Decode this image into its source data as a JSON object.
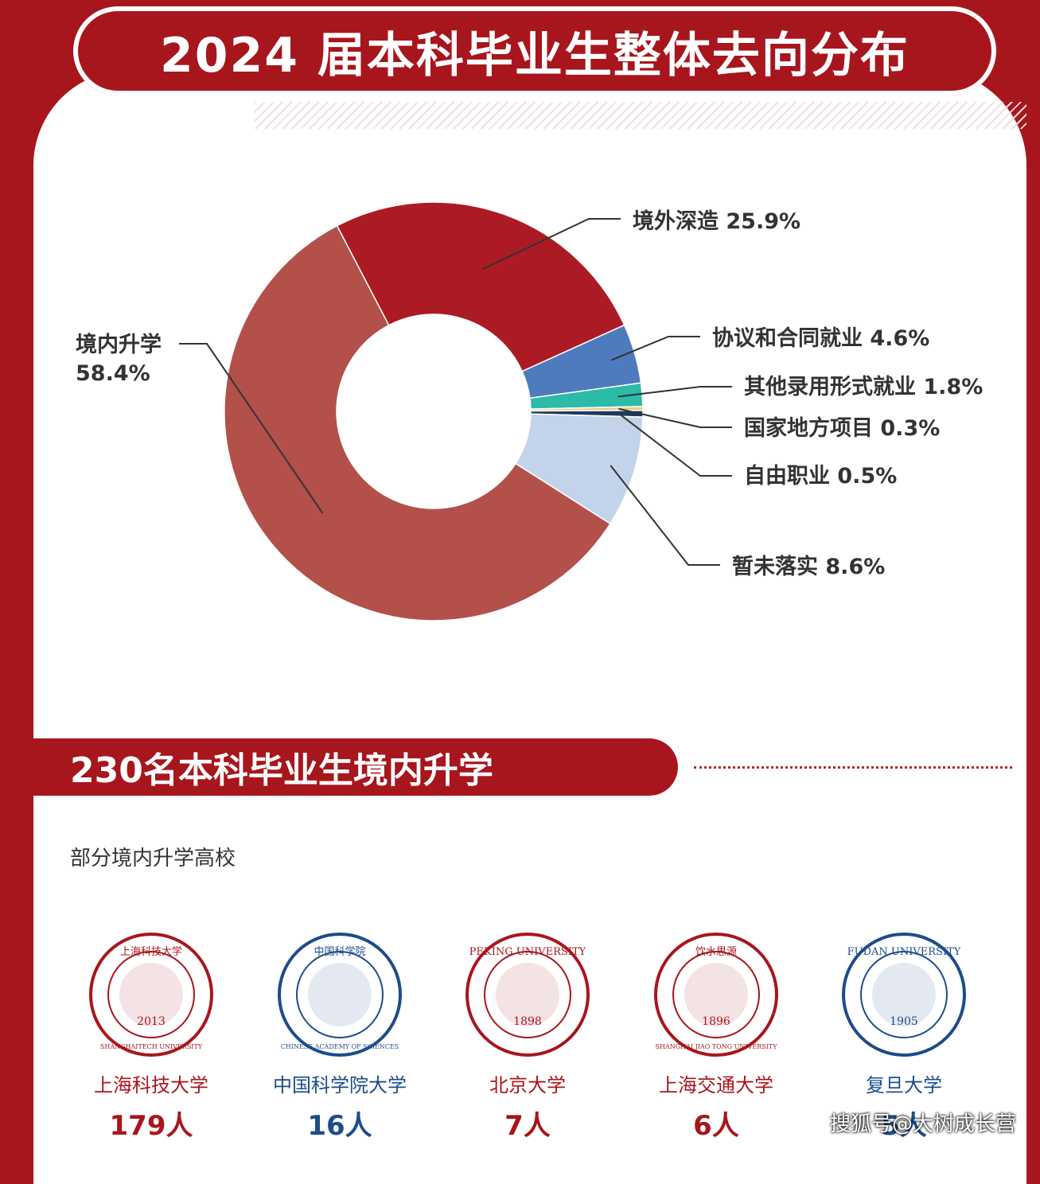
{
  "header": {
    "title": "2024 届本科毕业生整体去向分布"
  },
  "chart_data": {
    "type": "pie",
    "title": "2024 届本科毕业生整体去向分布",
    "slices": [
      {
        "label": "境外深造",
        "value": 25.9,
        "display": "境外深造 25.9%",
        "color": "#ac1b24"
      },
      {
        "label": "协议和合同就业",
        "value": 4.6,
        "display": "协议和合同就业 4.6%",
        "color": "#4e7bbd"
      },
      {
        "label": "其他录用形式就业",
        "value": 1.8,
        "display": "其他录用形式就业 1.8%",
        "color": "#2bbba8"
      },
      {
        "label": "国家地方项目",
        "value": 0.3,
        "display": "国家地方项目 0.3%",
        "color": "#ecc98b"
      },
      {
        "label": "自由职业",
        "value": 0.5,
        "display": "自由职业 0.5%",
        "color": "#1f3a5c"
      },
      {
        "label": "暂未落实",
        "value": 8.6,
        "display": "暂未落实 8.6%",
        "color": "#c3d4ea"
      },
      {
        "label": "境内升学",
        "value": 58.4,
        "display_line1": "境内升学",
        "display_line2": "58.4%",
        "color": "#b3504a"
      }
    ]
  },
  "section2": {
    "title": "230名本科毕业生境内升学",
    "subtitle": "部分境内升学高校"
  },
  "universities": [
    {
      "name": "上海科技大学",
      "count": "179人",
      "logo_text": "上海科技大学",
      "logo_en": "SHANGHAITECH UNIVERSITY",
      "logo_year": "2013",
      "color": "#a8161d"
    },
    {
      "name": "中国科学院大学",
      "count": "16人",
      "logo_text": "中国科学院",
      "logo_en": "CHINESE ACADEMY OF SCIENCES",
      "color": "#1d4c8a"
    },
    {
      "name": "北京大学",
      "count": "7人",
      "logo_text": "PEKING UNIVERSITY",
      "logo_year": "1898",
      "color": "#a8161d"
    },
    {
      "name": "上海交通大学",
      "count": "6人",
      "logo_text": "饮水思源",
      "logo_en": "SHANGHAI JIAO TONG UNIVERSITY",
      "logo_year": "1896",
      "color": "#a8161d"
    },
    {
      "name": "复旦大学",
      "count": "5人",
      "logo_text": "FUDAN UNIVERSITY",
      "logo_year": "1905",
      "color": "#1d4c8a"
    }
  ],
  "watermark": "搜狐号@大树成长营"
}
